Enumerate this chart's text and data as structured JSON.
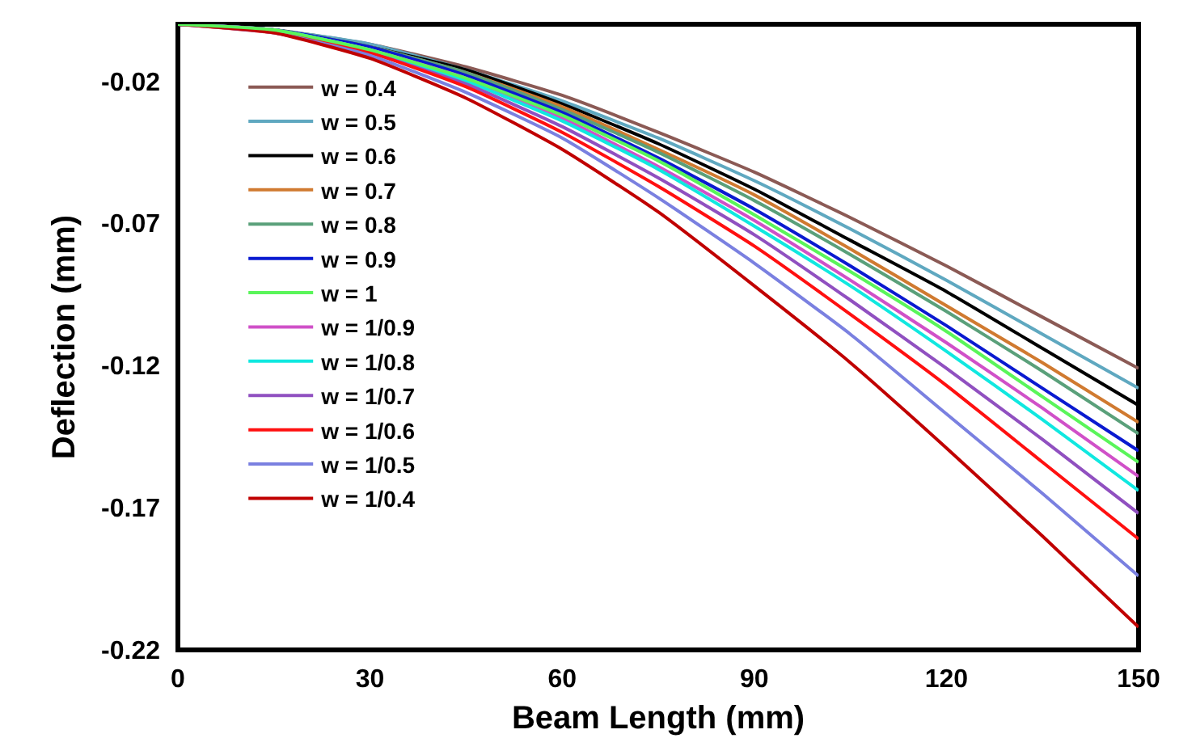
{
  "chart_data": {
    "type": "line",
    "xlabel": "Beam Length (mm)",
    "ylabel": "Deflection (mm)",
    "x": [
      0,
      15,
      30,
      45,
      60,
      75,
      90,
      105,
      120,
      135,
      150
    ],
    "xlim": [
      0,
      150
    ],
    "xticks": [
      0,
      30,
      60,
      90,
      120,
      150
    ],
    "ylim": [
      -0.22,
      0
    ],
    "yticks": [
      -0.22,
      -0.17,
      -0.12,
      -0.07,
      -0.02
    ],
    "grid": false,
    "legend": "top left",
    "marker": "none",
    "line_style": "solid",
    "series": [
      {
        "name": "w = 0.4",
        "color": "#8b5a55",
        "values": [
          0,
          -0.002,
          -0.007,
          -0.015,
          -0.025,
          -0.038,
          -0.052,
          -0.068,
          -0.085,
          -0.103,
          -0.121
        ]
      },
      {
        "name": "w = 0.5",
        "color": "#5fa8c0",
        "values": [
          0,
          -0.002,
          -0.007,
          -0.016,
          -0.027,
          -0.04,
          -0.055,
          -0.072,
          -0.09,
          -0.109,
          -0.128
        ]
      },
      {
        "name": "w = 0.6",
        "color": "#000000",
        "values": [
          0,
          -0.002,
          -0.008,
          -0.016,
          -0.028,
          -0.042,
          -0.058,
          -0.076,
          -0.094,
          -0.114,
          -0.134
        ]
      },
      {
        "name": "w = 0.7",
        "color": "#d07a30",
        "values": [
          0,
          -0.002,
          -0.008,
          -0.017,
          -0.029,
          -0.044,
          -0.06,
          -0.079,
          -0.099,
          -0.119,
          -0.14
        ]
      },
      {
        "name": "w = 0.8",
        "color": "#5aa07a",
        "values": [
          0,
          -0.002,
          -0.008,
          -0.017,
          -0.03,
          -0.045,
          -0.062,
          -0.081,
          -0.101,
          -0.122,
          -0.144
        ]
      },
      {
        "name": "w = 0.9",
        "color": "#0a1ad0",
        "values": [
          0,
          -0.002,
          -0.008,
          -0.018,
          -0.031,
          -0.047,
          -0.065,
          -0.085,
          -0.106,
          -0.128,
          -0.15
        ]
      },
      {
        "name": "w = 1",
        "color": "#5af55a",
        "values": [
          0,
          -0.002,
          -0.009,
          -0.019,
          -0.032,
          -0.048,
          -0.067,
          -0.087,
          -0.108,
          -0.131,
          -0.154
        ]
      },
      {
        "name": "w = 1/0.9",
        "color": "#d050c8",
        "values": [
          0,
          -0.002,
          -0.009,
          -0.019,
          -0.033,
          -0.05,
          -0.069,
          -0.09,
          -0.112,
          -0.135,
          -0.159
        ]
      },
      {
        "name": "w = 1/0.8",
        "color": "#10e8e0",
        "values": [
          0,
          -0.002,
          -0.009,
          -0.02,
          -0.034,
          -0.051,
          -0.071,
          -0.092,
          -0.115,
          -0.139,
          -0.164
        ]
      },
      {
        "name": "w = 1/0.7",
        "color": "#9050c0",
        "values": [
          0,
          -0.002,
          -0.01,
          -0.021,
          -0.036,
          -0.054,
          -0.074,
          -0.097,
          -0.121,
          -0.146,
          -0.172
        ]
      },
      {
        "name": "w = 1/0.6",
        "color": "#ff1010",
        "values": [
          0,
          -0.003,
          -0.01,
          -0.022,
          -0.038,
          -0.057,
          -0.078,
          -0.102,
          -0.127,
          -0.154,
          -0.181
        ]
      },
      {
        "name": "w = 1/0.5",
        "color": "#7a80e0",
        "values": [
          0,
          -0.003,
          -0.011,
          -0.024,
          -0.04,
          -0.061,
          -0.084,
          -0.109,
          -0.137,
          -0.165,
          -0.194
        ]
      },
      {
        "name": "w = 1/0.4",
        "color": "#c00000",
        "values": [
          0,
          -0.003,
          -0.012,
          -0.026,
          -0.044,
          -0.066,
          -0.092,
          -0.119,
          -0.149,
          -0.18,
          -0.212
        ]
      }
    ]
  }
}
